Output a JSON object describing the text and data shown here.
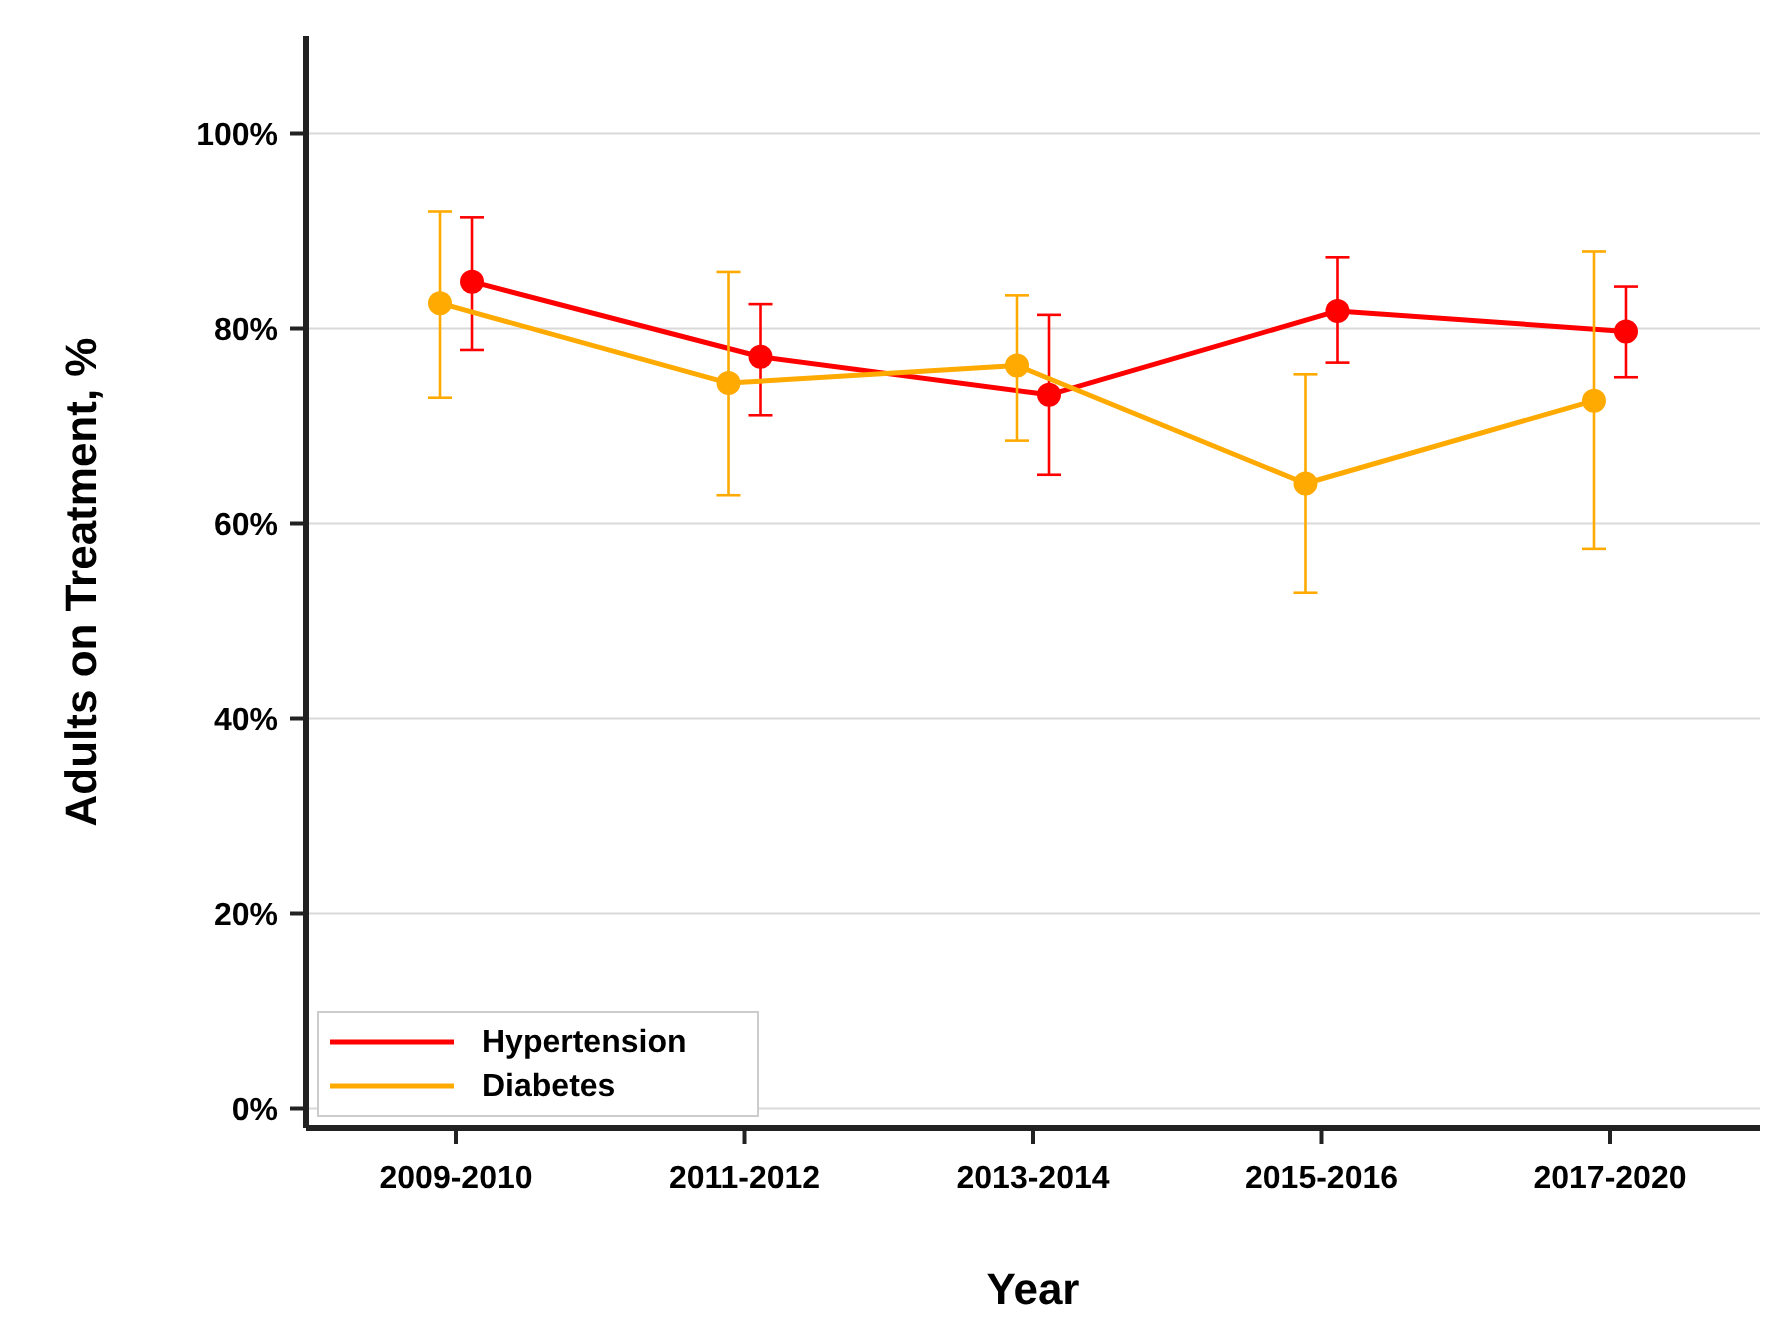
{
  "chart_data": {
    "type": "line",
    "xlabel": "Year",
    "ylabel": "Adults on Treatment, %",
    "categories": [
      "2009-2010",
      "2011-2012",
      "2013-2014",
      "2015-2016",
      "2017-2020"
    ],
    "series": [
      {
        "name": "Hypertension",
        "color": "#ff0000",
        "values": [
          84.8,
          77.1,
          73.2,
          81.8,
          79.7
        ],
        "errors": [
          [
            77.8,
            91.4
          ],
          [
            71.1,
            82.5
          ],
          [
            65.0,
            81.4
          ],
          [
            76.5,
            87.3
          ],
          [
            75.0,
            84.3
          ]
        ]
      },
      {
        "name": "Diabetes",
        "color": "#ffaa00",
        "values": [
          82.6,
          74.4,
          76.2,
          64.1,
          72.6
        ],
        "errors": [
          [
            72.9,
            92.0
          ],
          [
            62.9,
            85.8
          ],
          [
            68.5,
            83.4
          ],
          [
            52.9,
            75.3
          ],
          [
            57.4,
            87.9
          ]
        ]
      }
    ],
    "ylim": [
      -2,
      110
    ],
    "yticks": [
      {
        "value": 0,
        "label": "0%"
      },
      {
        "value": 20,
        "label": "20%"
      },
      {
        "value": 40,
        "label": "40%"
      },
      {
        "value": 60,
        "label": "60%"
      },
      {
        "value": 80,
        "label": "80%"
      },
      {
        "value": 100,
        "label": "100%"
      }
    ],
    "grid": "y",
    "legend": "bottom left",
    "marker": "circle",
    "line_style": "solid"
  }
}
